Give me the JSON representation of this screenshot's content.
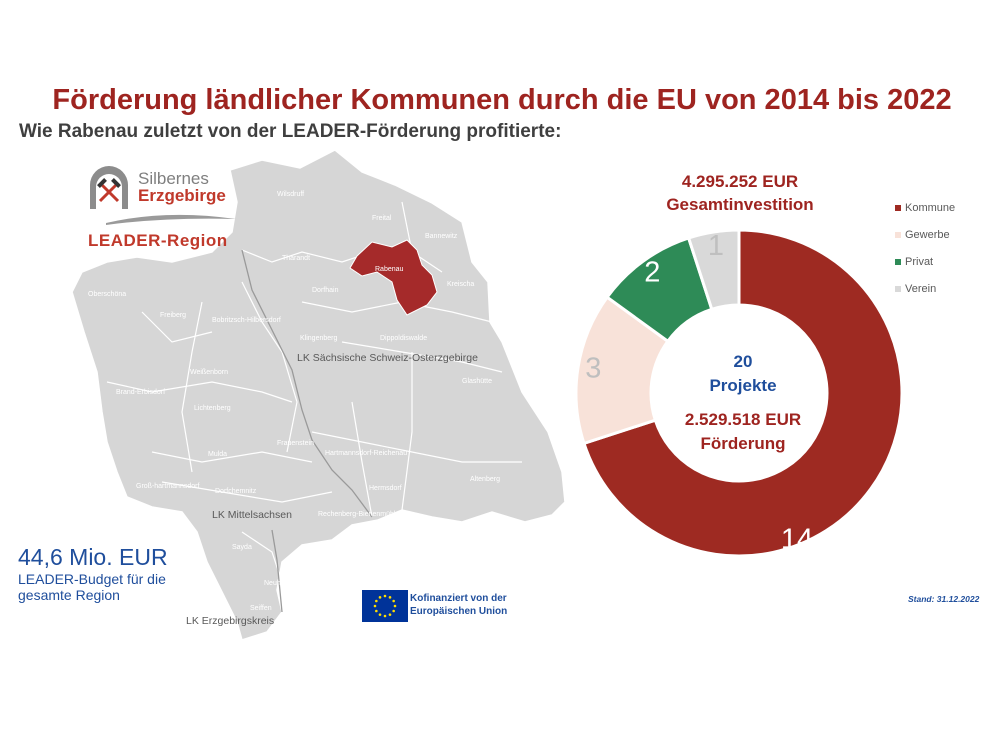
{
  "title": "Förderung ländlicher Kommunen durch die EU von 2014 bis 2022",
  "subtitle": "Wie Rabenau zuletzt von der LEADER-Förderung profitierte:",
  "logo": {
    "line1": "Silbernes",
    "line2": "Erzgebirge",
    "line3": "LEADER-Region"
  },
  "map": {
    "highlight_color": "#a52a2a",
    "highlighted": "Rabenau",
    "places": [
      "Wilsdruff",
      "Freital",
      "Bannewitz",
      "Tharandt",
      "Rabenau",
      "Kreischa",
      "Oberschöna",
      "Dorfhain",
      "Freiberg",
      "Bobritzsch-Hilbersdorf",
      "Klingenberg",
      "Dippoldiswalde",
      "Weißenborn",
      "Glashütte",
      "Brand-Erbisdorf",
      "Lichtenberg",
      "Frauenstein",
      "Hartmannsdorf-Reichenau",
      "Mulda",
      "Groß-hartmannsdorf",
      "Dorfchemnitz",
      "Hermsdorf",
      "Altenberg",
      "Rechenberg-Bienenmühle",
      "Sayda",
      "Neuhausen",
      "Seiffen"
    ],
    "districts": [
      "LK Sächsische Schweiz-Osterzgebirge",
      "LK Mittelsachsen",
      "LK Erzgebirgskreis"
    ]
  },
  "budget": {
    "amount": "44,6 Mio. EUR",
    "description": "LEADER-Budget für die gesamte Region"
  },
  "eu": {
    "text": "Kofinanziert von der Europäischen Union",
    "flag_color": "#003399",
    "star_color": "#ffdd00"
  },
  "investment": {
    "amount": "4.295.252 EUR",
    "label": "Gesamtinvestition"
  },
  "center": {
    "projects_count": "20",
    "projects_label": "Projekte",
    "funding_amount": "2.529.518 EUR",
    "funding_label": "Förderung"
  },
  "stand": "Stand: 31.12.2022",
  "chart_data": {
    "type": "pie",
    "donut": true,
    "categories": [
      "Kommune",
      "Gewerbe",
      "Privat",
      "Verein"
    ],
    "values": [
      14,
      3,
      2,
      1
    ],
    "colors": [
      "#9e2a22",
      "#f8e2d9",
      "#2e8b57",
      "#d9d9d9"
    ],
    "value_label_colors": [
      "#ffffff",
      "#bfbfbf",
      "#ffffff",
      "#bfbfbf"
    ],
    "legend_position": "right"
  }
}
